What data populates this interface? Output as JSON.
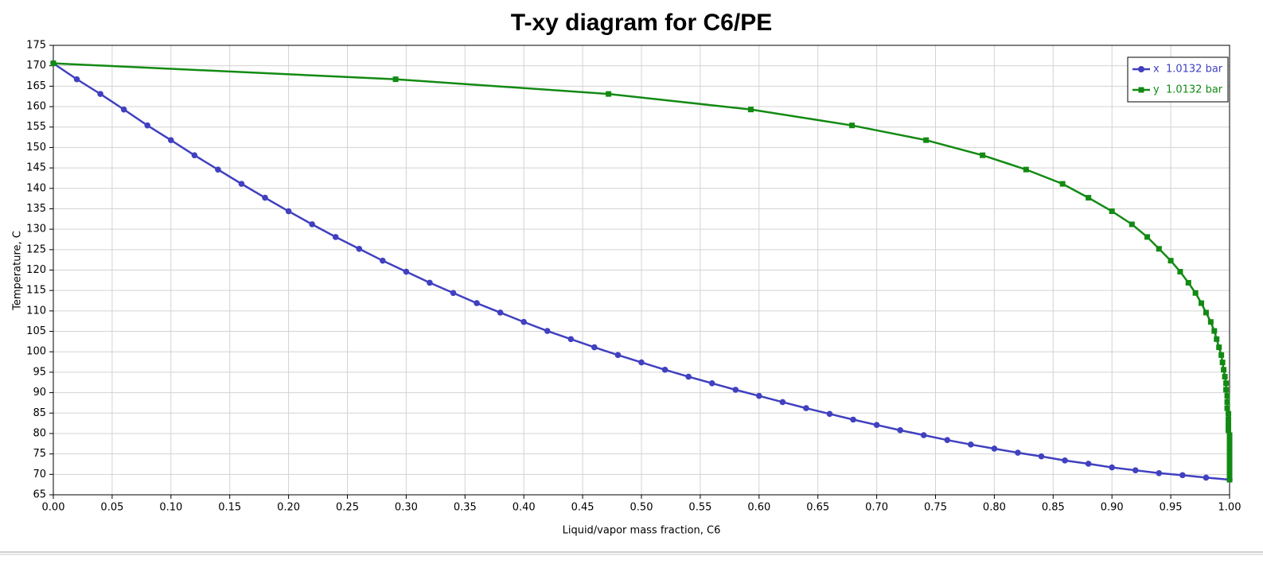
{
  "chart_data": {
    "type": "line",
    "title": "T-xy diagram for C6/PE",
    "x_label": "Liquid/vapor mass fraction, C6",
    "y_label": "Temperature, C",
    "xlim": [
      0,
      1
    ],
    "ylim": [
      65,
      175
    ],
    "xticks": [
      {
        "value": 0,
        "label": "0.00"
      },
      {
        "value": 0.05,
        "label": "0.05"
      },
      {
        "value": 0.1,
        "label": "0.10"
      },
      {
        "value": 0.15,
        "label": "0.15"
      },
      {
        "value": 0.2,
        "label": "0.20"
      },
      {
        "value": 0.25,
        "label": "0.25"
      },
      {
        "value": 0.3,
        "label": "0.30"
      },
      {
        "value": 0.35,
        "label": "0.35"
      },
      {
        "value": 0.4,
        "label": "0.40"
      },
      {
        "value": 0.45,
        "label": "0.45"
      },
      {
        "value": 0.5,
        "label": "0.50"
      },
      {
        "value": 0.55,
        "label": "0.55"
      },
      {
        "value": 0.6,
        "label": "0.60"
      },
      {
        "value": 0.65,
        "label": "0.65"
      },
      {
        "value": 0.7,
        "label": "0.70"
      },
      {
        "value": 0.75,
        "label": "0.75"
      },
      {
        "value": 0.8,
        "label": "0.80"
      },
      {
        "value": 0.85,
        "label": "0.85"
      },
      {
        "value": 0.9,
        "label": "0.90"
      },
      {
        "value": 0.95,
        "label": "0.95"
      },
      {
        "value": 1,
        "label": "1.00"
      }
    ],
    "yticks": [
      65,
      70,
      75,
      80,
      85,
      90,
      95,
      100,
      105,
      110,
      115,
      120,
      125,
      130,
      135,
      140,
      145,
      150,
      155,
      160,
      165,
      170,
      175
    ],
    "grid": true,
    "legend": "top-right",
    "series": [
      {
        "name": "x  1.0132 bar",
        "color": "#4040c0",
        "marker": "circle",
        "x": [
          0,
          0.02,
          0.04,
          0.06,
          0.08,
          0.1,
          0.12,
          0.14,
          0.16,
          0.18,
          0.2,
          0.22,
          0.24,
          0.26,
          0.28,
          0.3,
          0.32,
          0.34,
          0.36,
          0.38,
          0.4,
          0.42,
          0.44,
          0.46,
          0.48,
          0.5,
          0.52,
          0.54,
          0.56,
          0.58,
          0.6,
          0.62,
          0.64,
          0.66,
          0.68,
          0.7,
          0.72,
          0.74,
          0.76,
          0.78,
          0.8,
          0.82,
          0.84,
          0.86,
          0.88,
          0.9,
          0.92,
          0.94,
          0.96,
          0.98,
          1
        ],
        "values": [
          170.6,
          166.7,
          163.1,
          159.3,
          155.4,
          151.8,
          148.1,
          144.6,
          141.1,
          137.7,
          134.4,
          131.2,
          128.1,
          125.2,
          122.3,
          119.6,
          116.9,
          114.4,
          111.9,
          109.6,
          107.3,
          105.1,
          103.1,
          101.1,
          99.2,
          97.4,
          95.6,
          93.9,
          92.3,
          90.7,
          89.2,
          87.7,
          86.2,
          84.8,
          83.4,
          82.1,
          80.8,
          79.6,
          78.4,
          77.3,
          76.3,
          75.3,
          74.4,
          73.4,
          72.6,
          71.7,
          71.0,
          70.3,
          69.8,
          69.2,
          68.7
        ]
      },
      {
        "name": "y  1.0132 bar",
        "color": "#138a13",
        "marker": "square",
        "x": [
          0,
          0.291,
          0.472,
          0.593,
          0.679,
          0.742,
          0.79,
          0.827,
          0.858,
          0.88,
          0.9,
          0.917,
          0.93,
          0.94,
          0.95,
          0.958,
          0.965,
          0.971,
          0.976,
          0.98,
          0.984,
          0.987,
          0.989,
          0.991,
          0.993,
          0.994,
          0.995,
          0.996,
          0.997,
          0.997,
          0.998,
          0.998,
          0.998,
          0.999,
          0.999,
          0.999,
          0.999,
          1,
          1,
          1,
          1,
          1,
          1,
          1,
          1,
          1,
          1,
          1,
          1,
          1,
          1
        ],
        "values": [
          170.6,
          166.7,
          163.1,
          159.3,
          155.4,
          151.8,
          148.1,
          144.6,
          141.1,
          137.7,
          134.4,
          131.2,
          128.1,
          125.2,
          122.3,
          119.6,
          116.9,
          114.4,
          111.9,
          109.6,
          107.3,
          105.1,
          103.1,
          101.1,
          99.2,
          97.4,
          95.6,
          93.9,
          92.3,
          90.7,
          89.2,
          87.7,
          86.2,
          84.8,
          83.4,
          82.1,
          80.8,
          79.6,
          78.4,
          77.3,
          76.3,
          75.3,
          74.4,
          73.4,
          72.6,
          71.7,
          71.0,
          70.3,
          69.8,
          69.2,
          68.7
        ]
      }
    ]
  }
}
